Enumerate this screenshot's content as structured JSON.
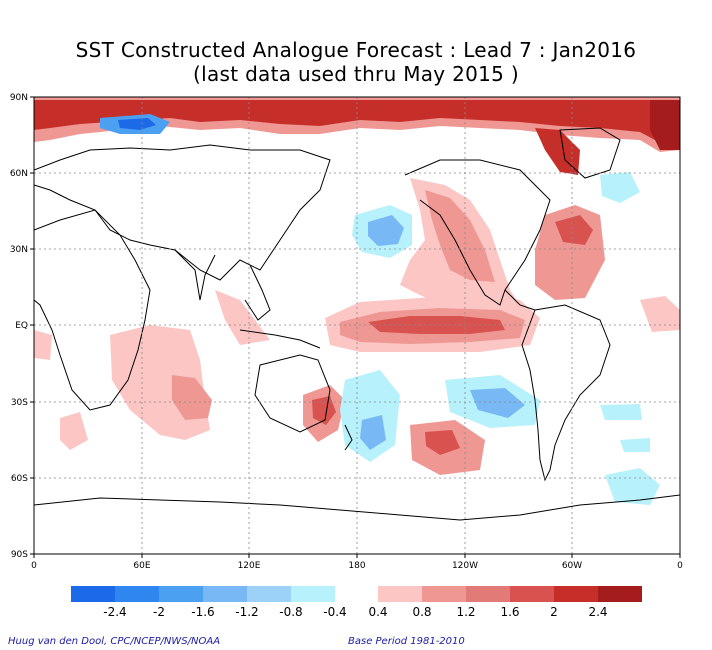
{
  "title": {
    "line1": "SST Constructed Analogue Forecast : Lead 7 : Jan2016",
    "line2": "(last data used thru May 2015 )"
  },
  "map": {
    "lat_labels": [
      "90N",
      "60N",
      "30N",
      "EQ",
      "30S",
      "60S",
      "90S"
    ],
    "lon_labels": [
      "0",
      "60E",
      "120E",
      "180",
      "120W",
      "60W",
      "0"
    ],
    "grid_style": "dotted"
  },
  "colorbar": {
    "negative_colors": [
      "#1c6ae8",
      "#2f86ef",
      "#4ba0f2",
      "#78b8f5",
      "#9dd2f8",
      "#b7f1fb"
    ],
    "positive_colors": [
      "#fcc6c4",
      "#ef9793",
      "#e27a77",
      "#d8534f",
      "#c62e2a",
      "#a41c1c"
    ],
    "negative_labels": [
      "-2.4",
      "-2",
      "-1.6",
      "-1.2",
      "-0.8",
      "-0.4"
    ],
    "positive_labels": [
      "0.4",
      "0.8",
      "1.2",
      "1.6",
      "2",
      "2.4"
    ]
  },
  "footer": {
    "credit": "Huug van den Dool, CPC/NCEP/NWS/NOAA",
    "base_period": "Base Period 1981-2010"
  }
}
